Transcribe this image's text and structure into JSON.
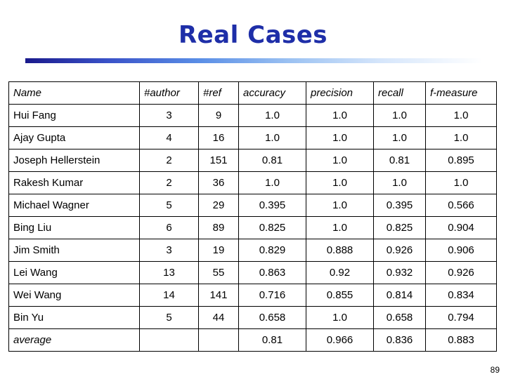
{
  "title": "Real Cases",
  "table": {
    "headers": [
      "Name",
      "#author",
      "#ref",
      "accuracy",
      "precision",
      "recall",
      "f-measure"
    ],
    "rows": [
      [
        "Hui Fang",
        "3",
        "9",
        "1.0",
        "1.0",
        "1.0",
        "1.0"
      ],
      [
        "Ajay Gupta",
        "4",
        "16",
        "1.0",
        "1.0",
        "1.0",
        "1.0"
      ],
      [
        "Joseph Hellerstein",
        "2",
        "151",
        "0.81",
        "1.0",
        "0.81",
        "0.895"
      ],
      [
        "Rakesh Kumar",
        "2",
        "36",
        "1.0",
        "1.0",
        "1.0",
        "1.0"
      ],
      [
        "Michael Wagner",
        "5",
        "29",
        "0.395",
        "1.0",
        "0.395",
        "0.566"
      ],
      [
        "Bing Liu",
        "6",
        "89",
        "0.825",
        "1.0",
        "0.825",
        "0.904"
      ],
      [
        "Jim Smith",
        "3",
        "19",
        "0.829",
        "0.888",
        "0.926",
        "0.906"
      ],
      [
        "Lei Wang",
        "13",
        "55",
        "0.863",
        "0.92",
        "0.932",
        "0.926"
      ],
      [
        "Wei Wang",
        "14",
        "141",
        "0.716",
        "0.855",
        "0.814",
        "0.834"
      ],
      [
        "Bin Yu",
        "5",
        "44",
        "0.658",
        "1.0",
        "0.658",
        "0.794"
      ]
    ],
    "average": [
      "average",
      "",
      "",
      "0.81",
      "0.966",
      "0.836",
      "0.883"
    ]
  },
  "page_number": "89"
}
